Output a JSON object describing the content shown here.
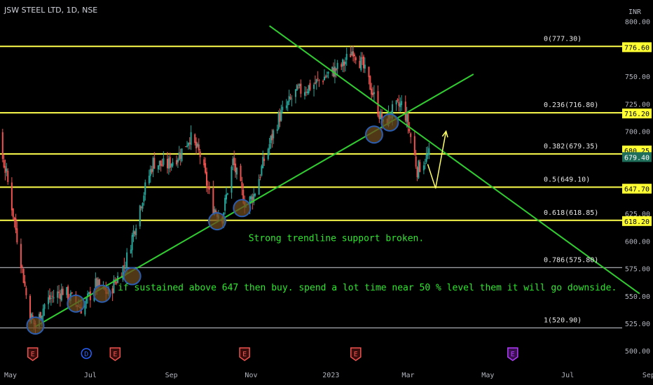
{
  "header": {
    "title": "JSW STEEL LTD, 1D, NSE",
    "currency": "INR"
  },
  "colors": {
    "background": "#000000",
    "candle_up": "#26a69a",
    "candle_down": "#ef5350",
    "fib_line": "#ffff4d",
    "fib_line_plain": "#d1d4dc",
    "trendline": "#32cd32",
    "annotation_text": "#2ee62e",
    "arrow": "#ffff66",
    "circle": "#2a5db0",
    "circle_fill": "#6b4a1e",
    "event_red": "#ef5350",
    "event_blue": "#2962ff",
    "event_purple": "#b33cff"
  },
  "chart_data": {
    "type": "candlestick",
    "title": "JSW STEEL LTD, 1D, NSE",
    "x_ticks": [
      "May",
      "Jul",
      "Sep",
      "Nov",
      "2023",
      "Mar",
      "May",
      "Jul",
      "Sep"
    ],
    "y_ticks": [
      "800.00",
      "775.00",
      "750.00",
      "725.00",
      "700.00",
      "675.00",
      "650.00",
      "625.00",
      "600.00",
      "575.00",
      "550.00",
      "525.00",
      "500.00"
    ],
    "ylim": [
      495,
      803
    ],
    "price_path": [
      {
        "date": "2022-04-01",
        "close": 758
      },
      {
        "date": "2022-04-15",
        "close": 728
      },
      {
        "date": "2022-04-28",
        "close": 660
      },
      {
        "date": "2022-05-08",
        "close": 590
      },
      {
        "date": "2022-05-15",
        "close": 535
      },
      {
        "date": "2022-05-20",
        "close": 522
      },
      {
        "date": "2022-05-28",
        "close": 545
      },
      {
        "date": "2022-06-10",
        "close": 555
      },
      {
        "date": "2022-06-25",
        "close": 538
      },
      {
        "date": "2022-07-05",
        "close": 560
      },
      {
        "date": "2022-07-15",
        "close": 552
      },
      {
        "date": "2022-07-28",
        "close": 580
      },
      {
        "date": "2022-08-08",
        "close": 632
      },
      {
        "date": "2022-08-18",
        "close": 672
      },
      {
        "date": "2022-08-28",
        "close": 668
      },
      {
        "date": "2022-09-08",
        "close": 680
      },
      {
        "date": "2022-09-15",
        "close": 695
      },
      {
        "date": "2022-09-23",
        "close": 678
      },
      {
        "date": "2022-10-02",
        "close": 632
      },
      {
        "date": "2022-10-10",
        "close": 622
      },
      {
        "date": "2022-10-18",
        "close": 672
      },
      {
        "date": "2022-10-28",
        "close": 632
      },
      {
        "date": "2022-11-03",
        "close": 642
      },
      {
        "date": "2022-11-12",
        "close": 678
      },
      {
        "date": "2022-11-22",
        "close": 712
      },
      {
        "date": "2022-12-05",
        "close": 735
      },
      {
        "date": "2022-12-18",
        "close": 742
      },
      {
        "date": "2022-12-30",
        "close": 752
      },
      {
        "date": "2023-01-10",
        "close": 760
      },
      {
        "date": "2023-01-18",
        "close": 775
      },
      {
        "date": "2023-01-25",
        "close": 760
      },
      {
        "date": "2023-02-02",
        "close": 735
      },
      {
        "date": "2023-02-10",
        "close": 705
      },
      {
        "date": "2023-02-18",
        "close": 720
      },
      {
        "date": "2023-02-25",
        "close": 725
      },
      {
        "date": "2023-03-03",
        "close": 695
      },
      {
        "date": "2023-03-08",
        "close": 665
      },
      {
        "date": "2023-03-14",
        "close": 675
      },
      {
        "date": "2023-03-18",
        "close": 679.4
      }
    ],
    "fib_levels": [
      {
        "label": "0(777.30)",
        "price": 777.3,
        "highlighted": true
      },
      {
        "label": "0.236(716.80)",
        "price": 716.8,
        "highlighted": true
      },
      {
        "label": "0.382(679.35)",
        "price": 679.35,
        "highlighted": true
      },
      {
        "label": "0.5(649.10)",
        "price": 649.1,
        "highlighted": true
      },
      {
        "label": "0.618(618.85)",
        "price": 618.85,
        "highlighted": true
      },
      {
        "label": "0.786(575.80)",
        "price": 575.8,
        "highlighted": false
      },
      {
        "label": "1(520.90)",
        "price": 520.9,
        "highlighted": false
      }
    ],
    "price_badges": [
      {
        "label": "776.60",
        "price": 776.6,
        "style": "yellow"
      },
      {
        "label": "716.20",
        "price": 716.2,
        "style": "yellow"
      },
      {
        "label": "680.25",
        "price": 682.5,
        "style": "yellow"
      },
      {
        "label": "679.40",
        "price": 676.5,
        "style": "green"
      },
      {
        "label": "647.70",
        "price": 647.7,
        "style": "yellow"
      },
      {
        "label": "618.20",
        "price": 618.2,
        "style": "yellow"
      }
    ],
    "trendlines": [
      {
        "name": "rising support",
        "from": {
          "date": "2022-05-20",
          "price": 522
        },
        "to": {
          "date": "2023-04-20",
          "price": 752
        }
      },
      {
        "name": "falling resistance",
        "from": {
          "date": "2022-11-15",
          "price": 796
        },
        "to": {
          "date": "2023-08-25",
          "price": 552
        }
      }
    ],
    "circles": [
      {
        "date": "2022-05-20",
        "price": 523
      },
      {
        "date": "2022-06-20",
        "price": 543
      },
      {
        "date": "2022-07-10",
        "price": 552
      },
      {
        "date": "2022-08-02",
        "price": 568
      },
      {
        "date": "2022-10-06",
        "price": 618
      },
      {
        "date": "2022-10-25",
        "price": 630
      },
      {
        "date": "2023-02-03",
        "price": 697
      },
      {
        "date": "2023-02-15",
        "price": 708
      }
    ],
    "projection_arrow": [
      {
        "date": "2023-03-16",
        "price": 670
      },
      {
        "date": "2023-03-22",
        "price": 648
      },
      {
        "date": "2023-03-30",
        "price": 700
      }
    ],
    "annotations": [
      {
        "text": "Strong trendline support broken.",
        "date": "2022-10-30",
        "price": 600
      },
      {
        "text": "if sustained above 647 then buy. spend a lot time near 50 % level them it will go downside.",
        "date": "2022-07-22",
        "price": 555
      }
    ],
    "events": [
      {
        "label": "E",
        "date": "2022-05-18",
        "color": "red"
      },
      {
        "label": "D",
        "date": "2022-06-28",
        "color": "blue"
      },
      {
        "label": "E",
        "date": "2022-07-20",
        "color": "red"
      },
      {
        "label": "E",
        "date": "2022-10-27",
        "color": "red"
      },
      {
        "label": "E",
        "date": "2023-01-20",
        "color": "red"
      },
      {
        "label": "E",
        "date": "2023-05-20",
        "color": "purple"
      }
    ]
  }
}
